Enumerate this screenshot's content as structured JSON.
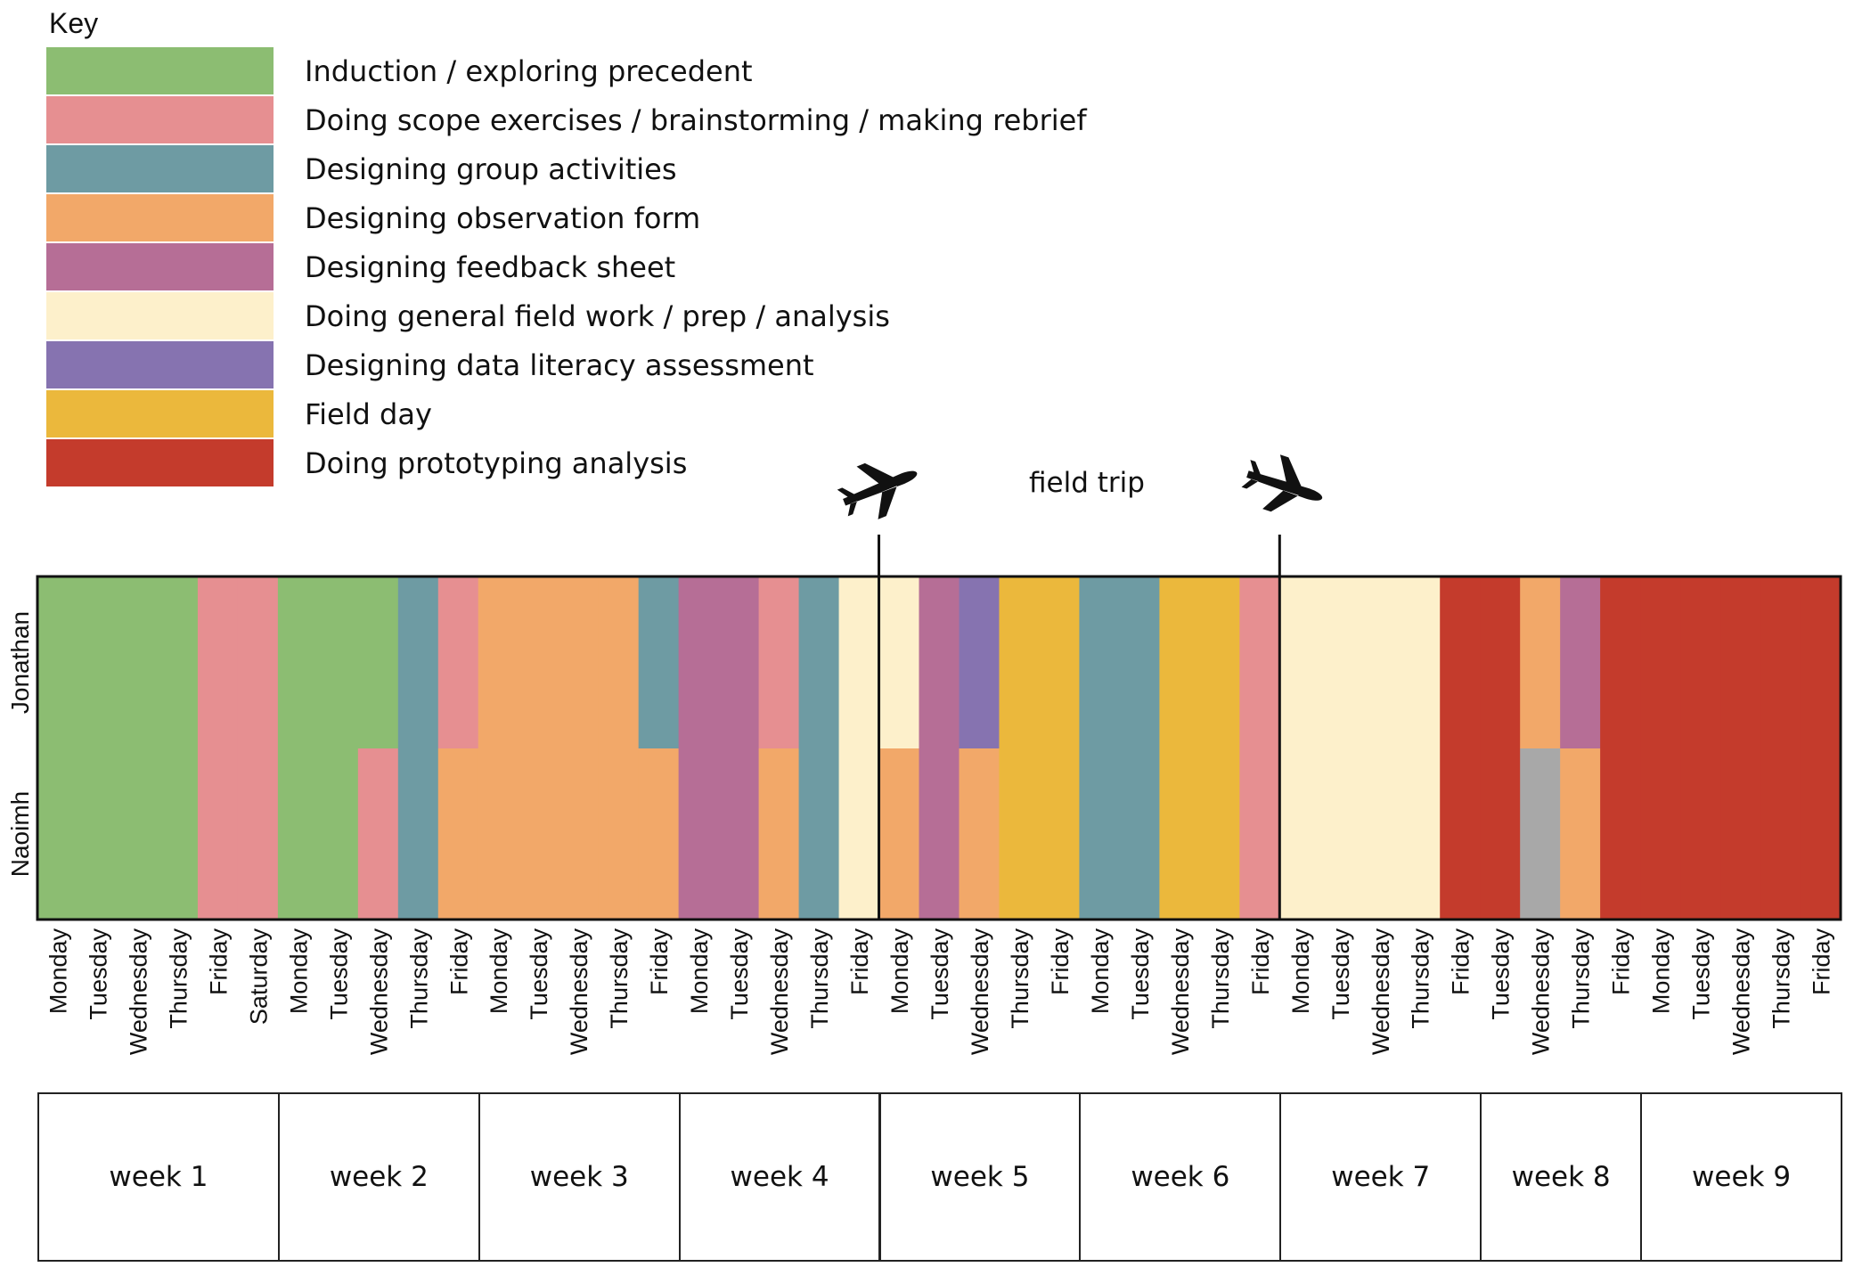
{
  "key": {
    "title": "Key",
    "items": [
      {
        "label": "Induction / exploring precedent",
        "color": "#8cbd72"
      },
      {
        "label": "Doing scope exercises / brainstorming / making rebrief",
        "color": "#e68f91"
      },
      {
        "label": "Designing group activities",
        "color": "#6e9ba3"
      },
      {
        "label": "Designing observation form",
        "color": "#f2a869"
      },
      {
        "label": "Designing feedback sheet",
        "color": "#b66e96"
      },
      {
        "label": "Doing general field work / prep / analysis",
        "color": "#fdf0cb"
      },
      {
        "label": "Designing data literacy assessment",
        "color": "#8673b0"
      },
      {
        "label": "Field day",
        "color": "#ebb83c"
      },
      {
        "label": "Doing prototyping analysis",
        "color": "#c43b2c"
      }
    ]
  },
  "annotation": {
    "field_trip": "field trip",
    "icons": [
      "airplane-departure-icon",
      "airplane-return-icon"
    ]
  },
  "chart_data": {
    "type": "heatmap",
    "rows": [
      "Jonathan",
      "Naoimh"
    ],
    "days": [
      "Monday",
      "Tuesday",
      "Wednesday",
      "Thursday",
      "Friday",
      "Saturday",
      "Monday",
      "Tuesday",
      "Wednesday",
      "Thursday",
      "Friday",
      "Monday",
      "Tuesday",
      "Wednesday",
      "Thursday",
      "Friday",
      "Monday",
      "Tuesday",
      "Wednesday",
      "Thursday",
      "Friday",
      "Monday",
      "Tuesday",
      "Wednesday",
      "Thursday",
      "Friday",
      "Monday",
      "Tuesday",
      "Wednesday",
      "Thursday",
      "Friday",
      "Monday",
      "Tuesday",
      "Wednesday",
      "Thursday",
      "Friday",
      "Tuesday",
      "Wednesday",
      "Thursday",
      "Friday",
      "Monday",
      "Tuesday",
      "Wednesday",
      "Thursday",
      "Friday"
    ],
    "weeks": [
      {
        "label": "week 1",
        "days": 6
      },
      {
        "label": "week 2",
        "days": 5
      },
      {
        "label": "week 3",
        "days": 5
      },
      {
        "label": "week 4",
        "days": 5
      },
      {
        "label": "week 5",
        "days": 5
      },
      {
        "label": "week 6",
        "days": 5
      },
      {
        "label": "week 7",
        "days": 5
      },
      {
        "label": "week 8",
        "days": 4
      },
      {
        "label": "week 9",
        "days": 5
      }
    ],
    "activity_index": {
      "induction": 0,
      "scope": 1,
      "group": 2,
      "observation": 3,
      "feedback": 4,
      "fieldwork": 5,
      "data_literacy": 6,
      "field_day": 7,
      "prototyping": 8,
      "other": 9
    },
    "extra_color": "#a8a8a8",
    "jonathan": [
      0,
      0,
      0,
      0,
      1,
      1,
      0,
      0,
      0,
      2,
      1,
      3,
      3,
      3,
      3,
      2,
      4,
      4,
      1,
      2,
      5,
      5,
      4,
      6,
      7,
      7,
      2,
      2,
      7,
      7,
      1,
      5,
      5,
      5,
      5,
      8,
      8,
      3,
      4,
      8,
      8,
      8,
      8,
      8,
      8
    ],
    "naoimh": [
      0,
      0,
      0,
      0,
      1,
      1,
      0,
      0,
      1,
      2,
      3,
      3,
      3,
      3,
      3,
      3,
      4,
      4,
      3,
      2,
      5,
      3,
      4,
      3,
      7,
      7,
      2,
      2,
      7,
      7,
      1,
      5,
      5,
      5,
      5,
      8,
      8,
      9,
      3,
      8,
      8,
      8,
      8,
      8,
      8
    ],
    "field_trip_span": {
      "start_week": "week 5",
      "end_week": "week 7"
    }
  }
}
